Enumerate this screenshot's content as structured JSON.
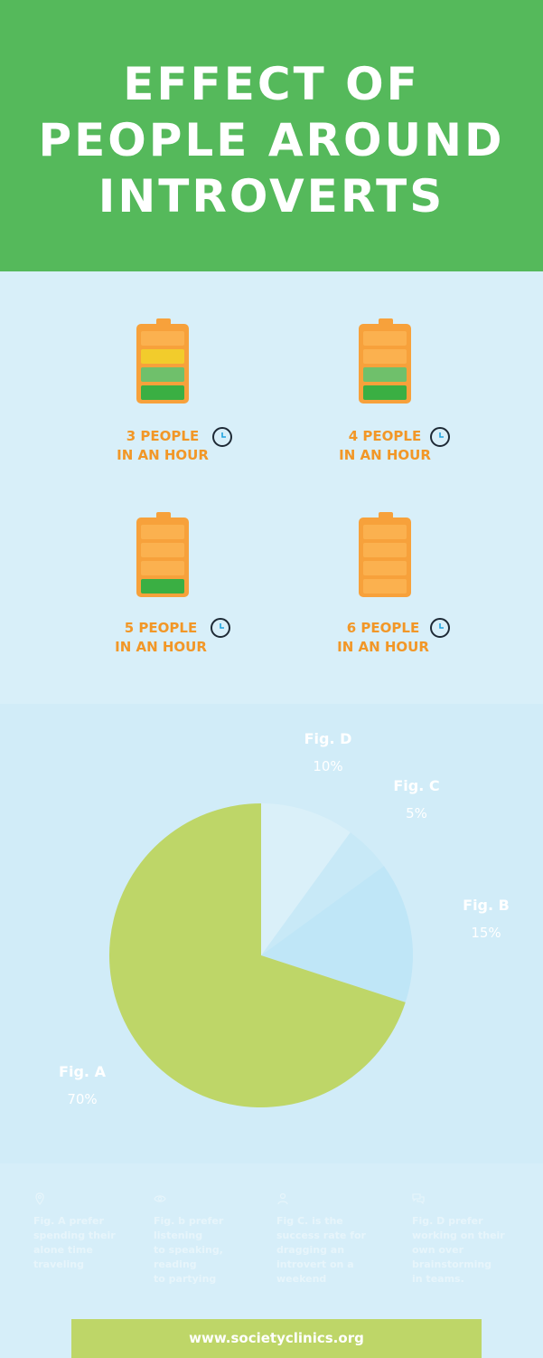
{
  "title": {
    "line1": "EFFECT OF",
    "line2": "PEOPLE AROUND",
    "line3": "INTROVERTS"
  },
  "batteries": [
    {
      "line1": "3 PEOPLE",
      "line2": "IN AN HOUR",
      "segments": [
        "#fbb14f",
        "#f2cc2c",
        "#6fc06b",
        "#3aaf43"
      ]
    },
    {
      "line1": "4 PEOPLE",
      "line2": "IN AN HOUR",
      "segments": [
        "#fbb14f",
        "#fbb14f",
        "#6fc06b",
        "#3aaf43"
      ]
    },
    {
      "line1": "5 PEOPLE",
      "line2": "IN AN HOUR",
      "segments": [
        "#fbb14f",
        "#fbb14f",
        "#fbb14f",
        "#3aaf43"
      ]
    },
    {
      "line1": "6 PEOPLE",
      "line2": "IN AN HOUR",
      "segments": [
        "#fbb14f",
        "#fbb14f",
        "#fbb14f",
        "#fbb14f"
      ]
    }
  ],
  "chart_data": {
    "type": "pie",
    "slices": [
      {
        "name": "Fig. A",
        "value": 70,
        "label": "70%",
        "color": "#bed668"
      },
      {
        "name": "Fig. B",
        "value": 15,
        "label": "15%",
        "color": "#bfe6f7"
      },
      {
        "name": "Fig. C",
        "value": 5,
        "label": "5%",
        "color": "#c8e9f7"
      },
      {
        "name": "Fig. D",
        "value": 10,
        "label": "10%",
        "color": "#daf0f9"
      }
    ]
  },
  "notes": [
    {
      "icon": "map-pin-icon",
      "text": "Fig. A prefer\nspending their\nalone time\ntraveling"
    },
    {
      "icon": "eye-icon",
      "text": "Fig.  b prefer\nlistening\nto speaking,\nreading\nto partying"
    },
    {
      "icon": "person-icon",
      "text": "Fig C. is the\nsuccess rate for\ndragging an\nintrovert on a\nweekend"
    },
    {
      "icon": "chat-bubbles-icon",
      "text": "Fig. D prefer\nworking on their\nown over\nbrainstorming\nin teams."
    }
  ],
  "footer": {
    "url": "www.societyclinics.org"
  }
}
